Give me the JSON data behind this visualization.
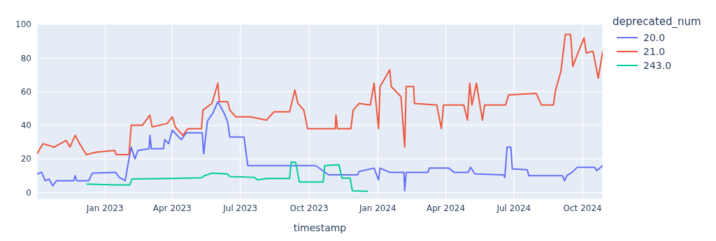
{
  "chart_data": {
    "type": "line",
    "xlabel": "timestamp",
    "legend_title": "deprecated_num",
    "legend": "top right",
    "grid": true,
    "marker": "none",
    "line_style": "solid",
    "xlim": [
      "2022-10-02",
      "2024-10-28"
    ],
    "xticks": [
      {
        "value": "2023-01-01",
        "label": "Jan 2023"
      },
      {
        "value": "2023-04-01",
        "label": "Apr 2023"
      },
      {
        "value": "2023-07-01",
        "label": "Jul 2023"
      },
      {
        "value": "2023-10-01",
        "label": "Oct 2023"
      },
      {
        "value": "2024-01-01",
        "label": "Jan 2024"
      },
      {
        "value": "2024-04-01",
        "label": "Apr 2024"
      },
      {
        "value": "2024-07-01",
        "label": "Jul 2024"
      },
      {
        "value": "2024-10-01",
        "label": "Oct 2024"
      }
    ],
    "ylim": [
      -4,
      100
    ],
    "yticks": [
      0,
      20,
      40,
      60,
      80,
      100
    ],
    "series": [
      {
        "name": "20.0",
        "color": "#636efa",
        "x": [
          "2022-10-02",
          "2022-10-08",
          "2022-10-13",
          "2022-10-18",
          "2022-10-23",
          "2022-10-28",
          "2022-11-20",
          "2022-11-22",
          "2022-11-24",
          "2022-12-10",
          "2022-12-15",
          "2023-01-15",
          "2023-01-20",
          "2023-01-28",
          "2023-02-02",
          "2023-02-05",
          "2023-02-10",
          "2023-02-14",
          "2023-03-01",
          "2023-03-02",
          "2023-03-04",
          "2023-03-20",
          "2023-03-22",
          "2023-03-27",
          "2023-04-01",
          "2023-04-13",
          "2023-04-20",
          "2023-05-11",
          "2023-05-13",
          "2023-05-18",
          "2023-05-25",
          "2023-06-01",
          "2023-06-09",
          "2023-06-14",
          "2023-06-17",
          "2023-07-06",
          "2023-07-11",
          "2023-10-10",
          "2023-10-27",
          "2023-12-05",
          "2023-12-07",
          "2023-12-27",
          "2024-01-02",
          "2024-01-04",
          "2024-01-17",
          "2024-02-05",
          "2024-02-06",
          "2024-02-08",
          "2024-03-08",
          "2024-03-10",
          "2024-04-05",
          "2024-04-12",
          "2024-05-01",
          "2024-05-04",
          "2024-05-10",
          "2024-06-17",
          "2024-06-19",
          "2024-06-22",
          "2024-06-27",
          "2024-06-29",
          "2024-07-19",
          "2024-07-21",
          "2024-09-04",
          "2024-09-07",
          "2024-09-10",
          "2024-09-17",
          "2024-09-24",
          "2024-10-17",
          "2024-10-20",
          "2024-10-28"
        ],
        "values": [
          11,
          12,
          7,
          8,
          4,
          7,
          7,
          10,
          7,
          7,
          11.5,
          12,
          9,
          7,
          20,
          27,
          20,
          25,
          26,
          34,
          26,
          26,
          31.5,
          29,
          37,
          31.5,
          35.5,
          35.5,
          23,
          42.5,
          47,
          54,
          47.5,
          42,
          33,
          33,
          16,
          16,
          10.5,
          10.5,
          12.5,
          14.5,
          7.5,
          14.5,
          12,
          12,
          1,
          12,
          12,
          14.5,
          14.5,
          12,
          12,
          15,
          11,
          10.5,
          9,
          27,
          27,
          14,
          13.5,
          10,
          10,
          7,
          10,
          12,
          15,
          15,
          13,
          16
        ]
      },
      {
        "name": "21.0",
        "color": "#ef553b",
        "x": [
          "2022-10-02",
          "2022-10-10",
          "2022-10-25",
          "2022-11-10",
          "2022-11-15",
          "2022-11-22",
          "2022-11-28",
          "2022-12-07",
          "2022-12-20",
          "2023-01-14",
          "2023-01-16",
          "2023-02-02",
          "2023-02-05",
          "2023-02-20",
          "2023-03-02",
          "2023-03-05",
          "2023-03-25",
          "2023-04-01",
          "2023-04-05",
          "2023-04-15",
          "2023-04-22",
          "2023-05-10",
          "2023-05-12",
          "2023-05-24",
          "2023-06-01",
          "2023-06-03",
          "2023-06-14",
          "2023-06-17",
          "2023-06-25",
          "2023-07-15",
          "2023-08-05",
          "2023-08-15",
          "2023-09-05",
          "2023-09-12",
          "2023-09-16",
          "2023-09-24",
          "2023-09-29",
          "2023-11-05",
          "2023-11-06",
          "2023-11-08",
          "2023-11-26",
          "2023-11-29",
          "2023-12-07",
          "2023-12-22",
          "2023-12-27",
          "2024-01-02",
          "2024-01-04",
          "2024-01-17",
          "2024-01-19",
          "2024-02-01",
          "2024-02-06",
          "2024-02-08",
          "2024-02-18",
          "2024-02-19",
          "2024-03-20",
          "2024-03-26",
          "2024-03-29",
          "2024-04-25",
          "2024-04-30",
          "2024-05-03",
          "2024-05-06",
          "2024-05-12",
          "2024-05-20",
          "2024-05-23",
          "2024-06-20",
          "2024-06-24",
          "2024-07-31",
          "2024-08-07",
          "2024-08-23",
          "2024-08-26",
          "2024-09-02",
          "2024-09-08",
          "2024-09-15",
          "2024-09-18",
          "2024-09-24",
          "2024-10-03",
          "2024-10-06",
          "2024-10-15",
          "2024-10-22",
          "2024-10-28"
        ],
        "values": [
          23,
          29,
          27,
          31,
          27,
          34,
          29,
          22.5,
          24,
          25,
          22.5,
          22.5,
          40,
          40,
          46,
          39,
          41,
          45,
          39,
          34,
          38,
          38,
          49,
          53,
          65,
          54,
          54,
          49,
          45,
          45,
          43,
          48,
          48,
          61,
          53,
          49,
          38,
          38,
          46,
          38,
          38,
          49,
          53,
          52,
          65,
          38,
          63,
          73,
          63,
          57,
          27,
          63,
          63,
          53,
          52,
          38,
          52,
          52,
          43,
          65,
          52,
          65,
          43,
          52,
          52,
          58,
          59,
          52,
          52,
          61,
          72,
          94,
          94,
          75,
          82,
          92,
          83,
          84,
          68,
          84
        ]
      },
      {
        "name": "243.0",
        "color": "#00cc96",
        "x": [
          "2022-12-07",
          "2023-01-16",
          "2023-02-03",
          "2023-02-06",
          "2023-05-10",
          "2023-05-14",
          "2023-05-24",
          "2023-06-14",
          "2023-06-17",
          "2023-07-20",
          "2023-07-24",
          "2023-08-05",
          "2023-09-05",
          "2023-09-07",
          "2023-09-13",
          "2023-09-18",
          "2023-10-20",
          "2023-10-22",
          "2023-11-10",
          "2023-11-14",
          "2023-11-25",
          "2023-11-28",
          "2023-12-19"
        ],
        "values": [
          5,
          4.5,
          4.5,
          8,
          8.7,
          10,
          11.5,
          11,
          9.5,
          9,
          7.5,
          8.3,
          8.3,
          18,
          18,
          6.3,
          6.3,
          16,
          16.5,
          8.5,
          8.5,
          1,
          0.7
        ]
      }
    ]
  }
}
